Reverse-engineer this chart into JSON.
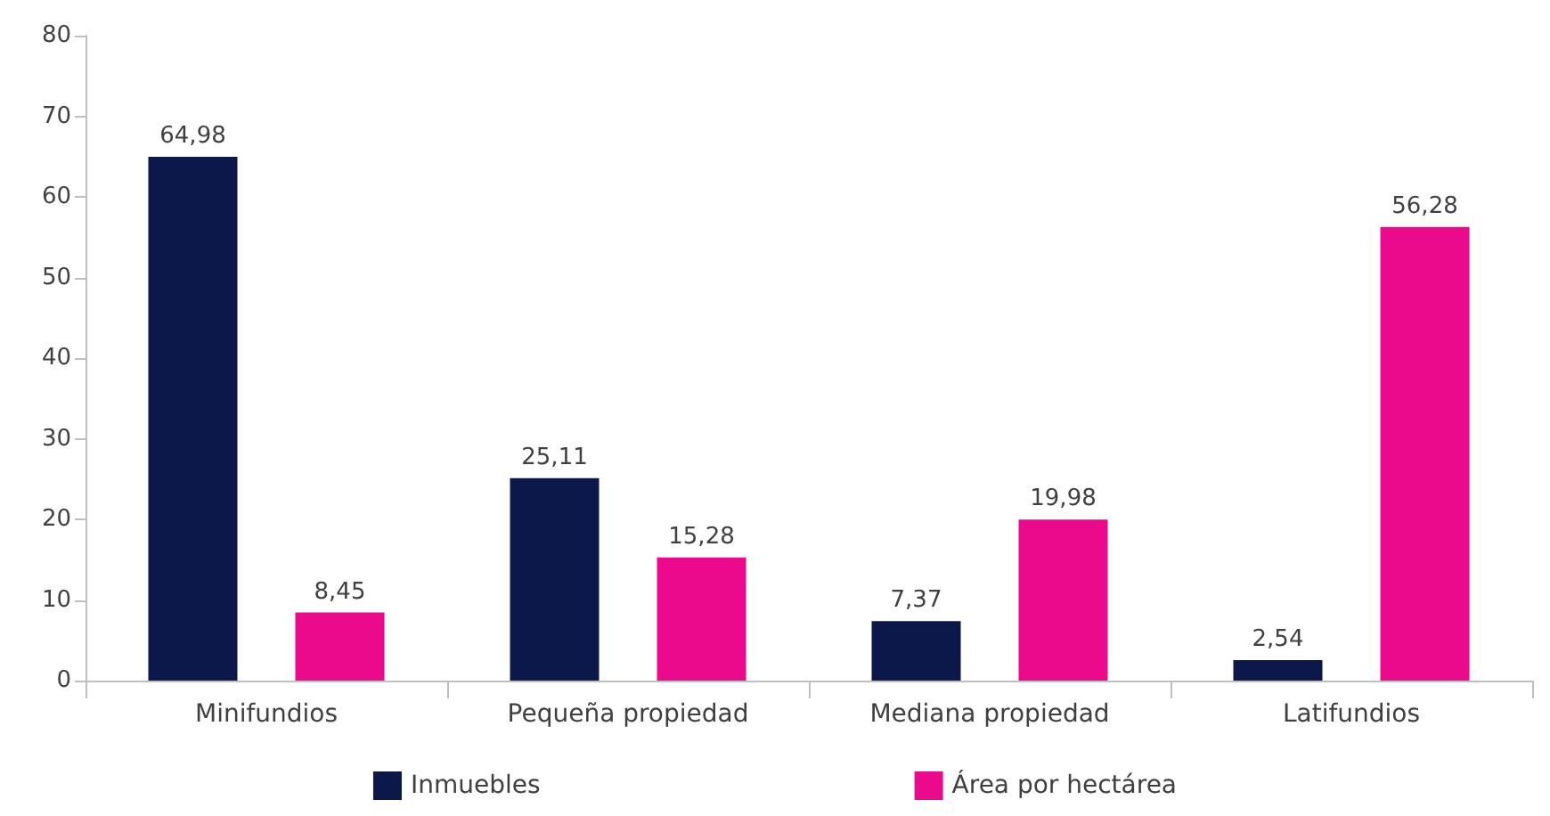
{
  "chart_data": {
    "type": "bar",
    "categories": [
      "Minifundios",
      "Pequeña propiedad",
      "Mediana propiedad",
      "Latifundios"
    ],
    "series": [
      {
        "name": "Inmuebles",
        "color": "#0b1849",
        "values": [
          64.98,
          25.11,
          7.37,
          2.54
        ],
        "value_labels": [
          "64,98",
          "25,11",
          "7,37",
          "2,54"
        ]
      },
      {
        "name": "Área por hectárea",
        "color": "#ec0a8c",
        "values": [
          8.45,
          15.28,
          19.98,
          56.28
        ],
        "value_labels": [
          "8,45",
          "15,28",
          "19,98",
          "56,28"
        ]
      }
    ],
    "ylim": [
      0,
      80
    ],
    "yticks": [
      0,
      10,
      20,
      30,
      40,
      50,
      60,
      70,
      80
    ],
    "grid": false,
    "legend": "bottom"
  }
}
